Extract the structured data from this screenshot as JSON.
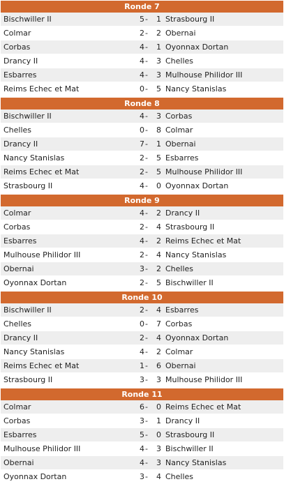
{
  "rounds": [
    {
      "title": "Ronde 7",
      "matches": [
        {
          "home": "Bischwiller II",
          "home_score": "5",
          "away_score": "1",
          "away": "Strasbourg II"
        },
        {
          "home": "Colmar",
          "home_score": "2",
          "away_score": "2",
          "away": "Obernai"
        },
        {
          "home": "Corbas",
          "home_score": "4",
          "away_score": "1",
          "away": "Oyonnax Dortan"
        },
        {
          "home": "Drancy II",
          "home_score": "4",
          "away_score": "3",
          "away": "Chelles"
        },
        {
          "home": "Esbarres",
          "home_score": "4",
          "away_score": "3",
          "away": "Mulhouse Philidor III"
        },
        {
          "home": "Reims Echec et Mat",
          "home_score": "0",
          "away_score": "5",
          "away": "Nancy Stanislas"
        }
      ]
    },
    {
      "title": "Ronde 8",
      "matches": [
        {
          "home": "Bischwiller II",
          "home_score": "4",
          "away_score": "3",
          "away": "Corbas"
        },
        {
          "home": "Chelles",
          "home_score": "0",
          "away_score": "8",
          "away": "Colmar"
        },
        {
          "home": "Drancy II",
          "home_score": "7",
          "away_score": "1",
          "away": "Obernai"
        },
        {
          "home": "Nancy Stanislas",
          "home_score": "2",
          "away_score": "5",
          "away": "Esbarres"
        },
        {
          "home": "Reims Echec et Mat",
          "home_score": "2",
          "away_score": "5",
          "away": "Mulhouse Philidor III"
        },
        {
          "home": "Strasbourg II",
          "home_score": "4",
          "away_score": "0",
          "away": "Oyonnax Dortan"
        }
      ]
    },
    {
      "title": "Ronde 9",
      "matches": [
        {
          "home": "Colmar",
          "home_score": "4",
          "away_score": "2",
          "away": "Drancy II"
        },
        {
          "home": "Corbas",
          "home_score": "2",
          "away_score": "4",
          "away": "Strasbourg II"
        },
        {
          "home": "Esbarres",
          "home_score": "4",
          "away_score": "2",
          "away": "Reims Echec et Mat"
        },
        {
          "home": "Mulhouse Philidor III",
          "home_score": "2",
          "away_score": "4",
          "away": "Nancy Stanislas"
        },
        {
          "home": "Obernai",
          "home_score": "3",
          "away_score": "2",
          "away": "Chelles"
        },
        {
          "home": "Oyonnax Dortan",
          "home_score": "2",
          "away_score": "5",
          "away": "Bischwiller II"
        }
      ]
    },
    {
      "title": "Ronde 10",
      "matches": [
        {
          "home": "Bischwiller II",
          "home_score": "2",
          "away_score": "4",
          "away": "Esbarres"
        },
        {
          "home": "Chelles",
          "home_score": "0",
          "away_score": "7",
          "away": "Corbas"
        },
        {
          "home": "Drancy II",
          "home_score": "2",
          "away_score": "4",
          "away": "Oyonnax Dortan"
        },
        {
          "home": "Nancy Stanislas",
          "home_score": "4",
          "away_score": "2",
          "away": "Colmar"
        },
        {
          "home": "Reims Echec et Mat",
          "home_score": "1",
          "away_score": "6",
          "away": "Obernai"
        },
        {
          "home": "Strasbourg II",
          "home_score": "3",
          "away_score": "3",
          "away": "Mulhouse Philidor III"
        }
      ]
    },
    {
      "title": "Ronde 11",
      "matches": [
        {
          "home": "Colmar",
          "home_score": "6",
          "away_score": "0",
          "away": "Reims Echec et Mat"
        },
        {
          "home": "Corbas",
          "home_score": "3",
          "away_score": "1",
          "away": "Drancy II"
        },
        {
          "home": "Esbarres",
          "home_score": "5",
          "away_score": "0",
          "away": "Strasbourg II"
        },
        {
          "home": "Mulhouse Philidor III",
          "home_score": "4",
          "away_score": "3",
          "away": "Bischwiller II"
        },
        {
          "home": "Obernai",
          "home_score": "4",
          "away_score": "3",
          "away": "Nancy Stanislas"
        },
        {
          "home": "Oyonnax Dortan",
          "home_score": "3",
          "away_score": "4",
          "away": "Chelles"
        }
      ]
    }
  ],
  "separator": "-",
  "colors": {
    "header_bg": "#d2692e",
    "header_text": "#ffffff",
    "row_alt": "#eeeeee",
    "row_plain": "#ffffff"
  }
}
